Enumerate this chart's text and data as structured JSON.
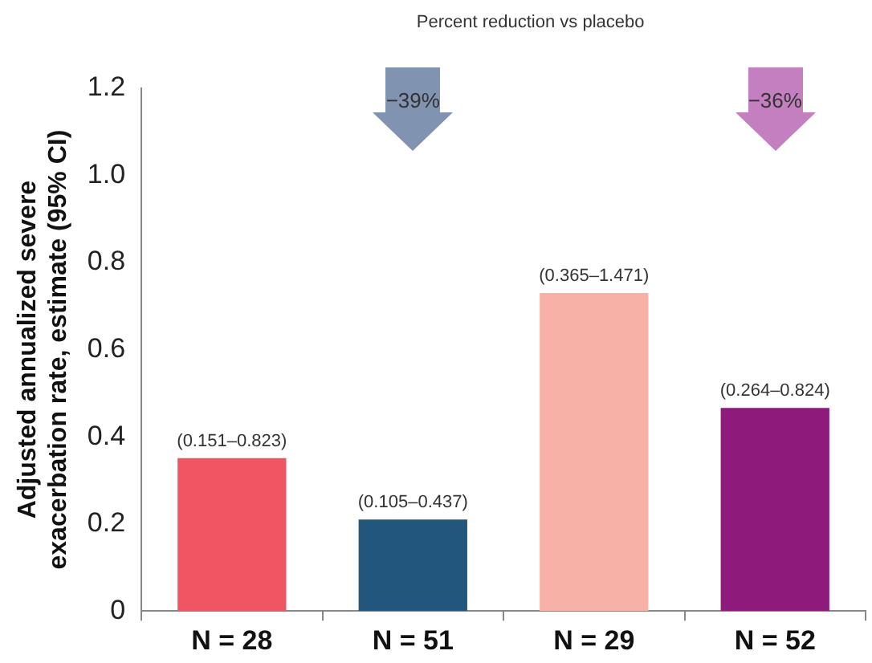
{
  "chart_data": {
    "type": "bar",
    "ylabel": "Adjusted annualized severe\nexacerbation rate, estimate (95% CI)",
    "categories": [
      "N = 28",
      "N = 51",
      "N = 29",
      "N = 52"
    ],
    "values": [
      0.351,
      0.21,
      0.73,
      0.466
    ],
    "colors": [
      "#f05563",
      "#23567d",
      "#f8b1a7",
      "#8e1a7c"
    ],
    "value_labels": [
      "(0.151–0.823)",
      "(0.105–0.437)",
      "(0.365–1.471)",
      "(0.264–0.824)"
    ],
    "annotations": [
      "Percent reduction vs placebo",
      "−39%",
      "−36%"
    ],
    "ylim": [
      0,
      1.2
    ],
    "yticks": [
      0,
      0.2,
      0.4,
      0.6,
      0.8,
      {
        "value": 1,
        "label": "1.0"
      },
      1.2
    ],
    "grid": false,
    "legend": false
  }
}
